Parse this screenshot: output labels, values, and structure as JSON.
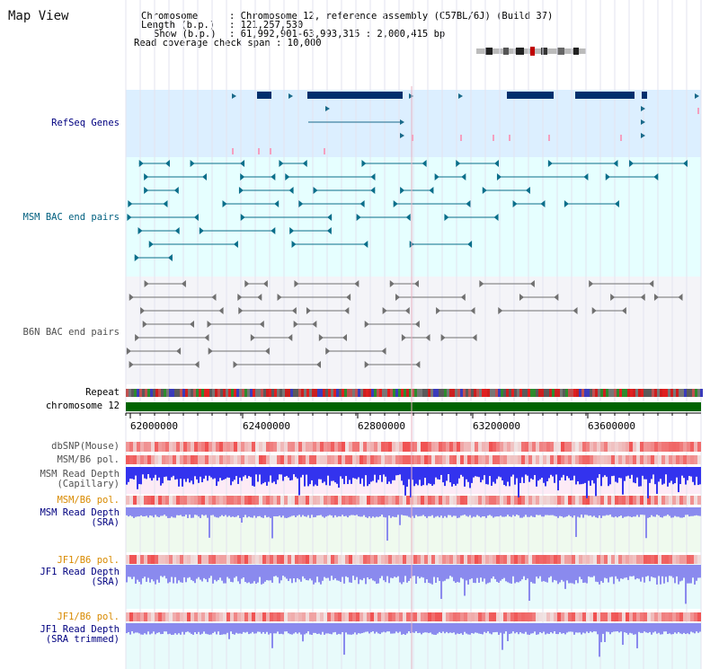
{
  "title": "Map View",
  "info": {
    "chromosome_key": "Chromosome",
    "chromosome_val": ": Chromosome 12, reference assembly (C57BL/6J) (Build 37)",
    "length_key": "Length (b.p.)",
    "length_val": ": 121,257,530",
    "show_key": "Show (b.p.)",
    "show_val": ": 61,992,901-63,993,315 : 2,000,415 bp",
    "span_text": "Read coverage check span : 10,000"
  },
  "labels": {
    "refseq": "RefSeq Genes",
    "msm_bac": "MSM BAC end pairs",
    "b6n_bac": "B6N BAC end pairs",
    "repeat": "Repeat",
    "chromosome": "chromosome 12",
    "dbsnp": "dbSNP(Mouse)",
    "msm_b6_pol_1": "MSM/B6 pol.",
    "msm_depth_cap": "MSM Read Depth\n(Capillary)",
    "msm_b6_pol_2": "MSM/B6 pol.",
    "msm_depth_sra": "MSM Read Depth\n(SRA)",
    "jf1_b6_pol_1": "JF1/B6 pol.",
    "jf1_depth_sra": "JF1 Read Depth\n(SRA)",
    "jf1_b6_pol_2": "JF1/B6 pol.",
    "jf1_depth_trim": "JF1 Read Depth\n(SRA trimmed)"
  },
  "axis": {
    "ticks": [
      "62000000",
      "62400000",
      "62800000",
      "63200000",
      "63600000"
    ],
    "start_bp": 61992901,
    "end_bp": 63993315
  },
  "colors": {
    "label_blue": "#000080",
    "label_teal": "#005f7f",
    "label_gray": "#505050",
    "label_orange": "#d88a00",
    "refseq_bg": "#dcefff",
    "msm_bg": "#e6ffff",
    "b6n_bg": "#f4f4f8",
    "chrom_green": "#006400",
    "gene_dark": "#002f6c",
    "msm_pair": "#0a6e8a",
    "b6n_pair": "#707070",
    "depth_blue": "#3333ee",
    "depth_sra": "#8a8aee"
  }
}
